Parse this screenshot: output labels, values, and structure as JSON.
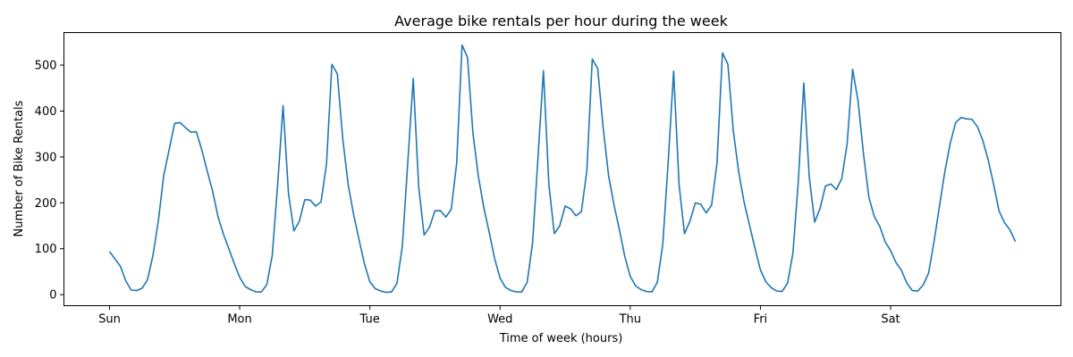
{
  "chart_data": {
    "type": "line",
    "title": "Average bike rentals per hour during the week",
    "xlabel": "Time of week (hours)",
    "ylabel": "Number of Bike Rentals",
    "xlim": [
      -8.4,
      175.4
    ],
    "ylim": [
      -24,
      571
    ],
    "grid": false,
    "legend": "none",
    "line_color": "#1f77b4",
    "x_ticks": [
      {
        "value": 0,
        "label": "Sun"
      },
      {
        "value": 24,
        "label": "Mon"
      },
      {
        "value": 48,
        "label": "Tue"
      },
      {
        "value": 72,
        "label": "Wed"
      },
      {
        "value": 96,
        "label": "Thu"
      },
      {
        "value": 120,
        "label": "Fri"
      },
      {
        "value": 144,
        "label": "Sat"
      }
    ],
    "y_ticks": [
      {
        "value": 0,
        "label": "0"
      },
      {
        "value": 100,
        "label": "100"
      },
      {
        "value": 200,
        "label": "200"
      },
      {
        "value": 300,
        "label": "300"
      },
      {
        "value": 400,
        "label": "400"
      },
      {
        "value": 500,
        "label": "500"
      }
    ],
    "series": [
      {
        "x": [
          0,
          1,
          2,
          3,
          4,
          5,
          6,
          7,
          8,
          9,
          10,
          11,
          12,
          13,
          14,
          15,
          16,
          17,
          18,
          19,
          20,
          21,
          22,
          23,
          24,
          25,
          26,
          27,
          28,
          29,
          30,
          31,
          32,
          33,
          34,
          35,
          36,
          37,
          38,
          39,
          40,
          41,
          42,
          43,
          44,
          45,
          46,
          47,
          48,
          49,
          50,
          51,
          52,
          53,
          54,
          55,
          56,
          57,
          58,
          59,
          60,
          61,
          62,
          63,
          64,
          65,
          66,
          67,
          68,
          69,
          70,
          71,
          72,
          73,
          74,
          75,
          76,
          77,
          78,
          79,
          80,
          81,
          82,
          83,
          84,
          85,
          86,
          87,
          88,
          89,
          90,
          91,
          92,
          93,
          94,
          95,
          96,
          97,
          98,
          99,
          100,
          101,
          102,
          103,
          104,
          105,
          106,
          107,
          108,
          109,
          110,
          111,
          112,
          113,
          114,
          115,
          116,
          117,
          118,
          119,
          120,
          121,
          122,
          123,
          124,
          125,
          126,
          127,
          128,
          129,
          130,
          131,
          132,
          133,
          134,
          135,
          136,
          137,
          138,
          139,
          140,
          141,
          142,
          143,
          144,
          145,
          146,
          147,
          148,
          149,
          150,
          151,
          152,
          153,
          154,
          155,
          156,
          157,
          158,
          159,
          160,
          161,
          162,
          163,
          164,
          165,
          166,
          167
        ],
        "y": [
          94,
          78,
          62,
          30,
          10,
          9,
          14,
          32,
          85,
          160,
          260,
          316,
          373,
          375,
          364,
          354,
          355,
          316,
          270,
          226,
          170,
          132,
          100,
          68,
          38,
          18,
          11,
          6,
          6,
          22,
          85,
          240,
          412,
          220,
          139,
          160,
          207,
          206,
          193,
          202,
          284,
          502,
          481,
          340,
          240,
          175,
          120,
          67,
          28,
          13,
          8,
          5,
          6,
          25,
          107,
          290,
          471,
          235,
          130,
          147,
          183,
          183,
          169,
          186,
          286,
          544,
          517,
          352,
          258,
          190,
          136,
          79,
          36,
          16,
          9,
          6,
          6,
          27,
          113,
          300,
          488,
          240,
          133,
          150,
          193,
          187,
          172,
          181,
          270,
          513,
          493,
          365,
          260,
          196,
          142,
          83,
          40,
          19,
          11,
          7,
          6,
          27,
          110,
          290,
          487,
          240,
          133,
          160,
          200,
          197,
          178,
          195,
          287,
          527,
          502,
          357,
          267,
          201,
          151,
          101,
          54,
          28,
          15,
          8,
          7,
          25,
          91,
          250,
          461,
          257,
          158,
          188,
          237,
          241,
          229,
          253,
          330,
          491,
          422,
          307,
          212,
          170,
          149,
          115,
          96,
          70,
          53,
          25,
          9,
          8,
          21,
          47,
          115,
          192,
          268,
          330,
          375,
          386,
          383,
          382,
          366,
          336,
          293,
          240,
          182,
          157,
          141,
          116
        ]
      }
    ]
  }
}
